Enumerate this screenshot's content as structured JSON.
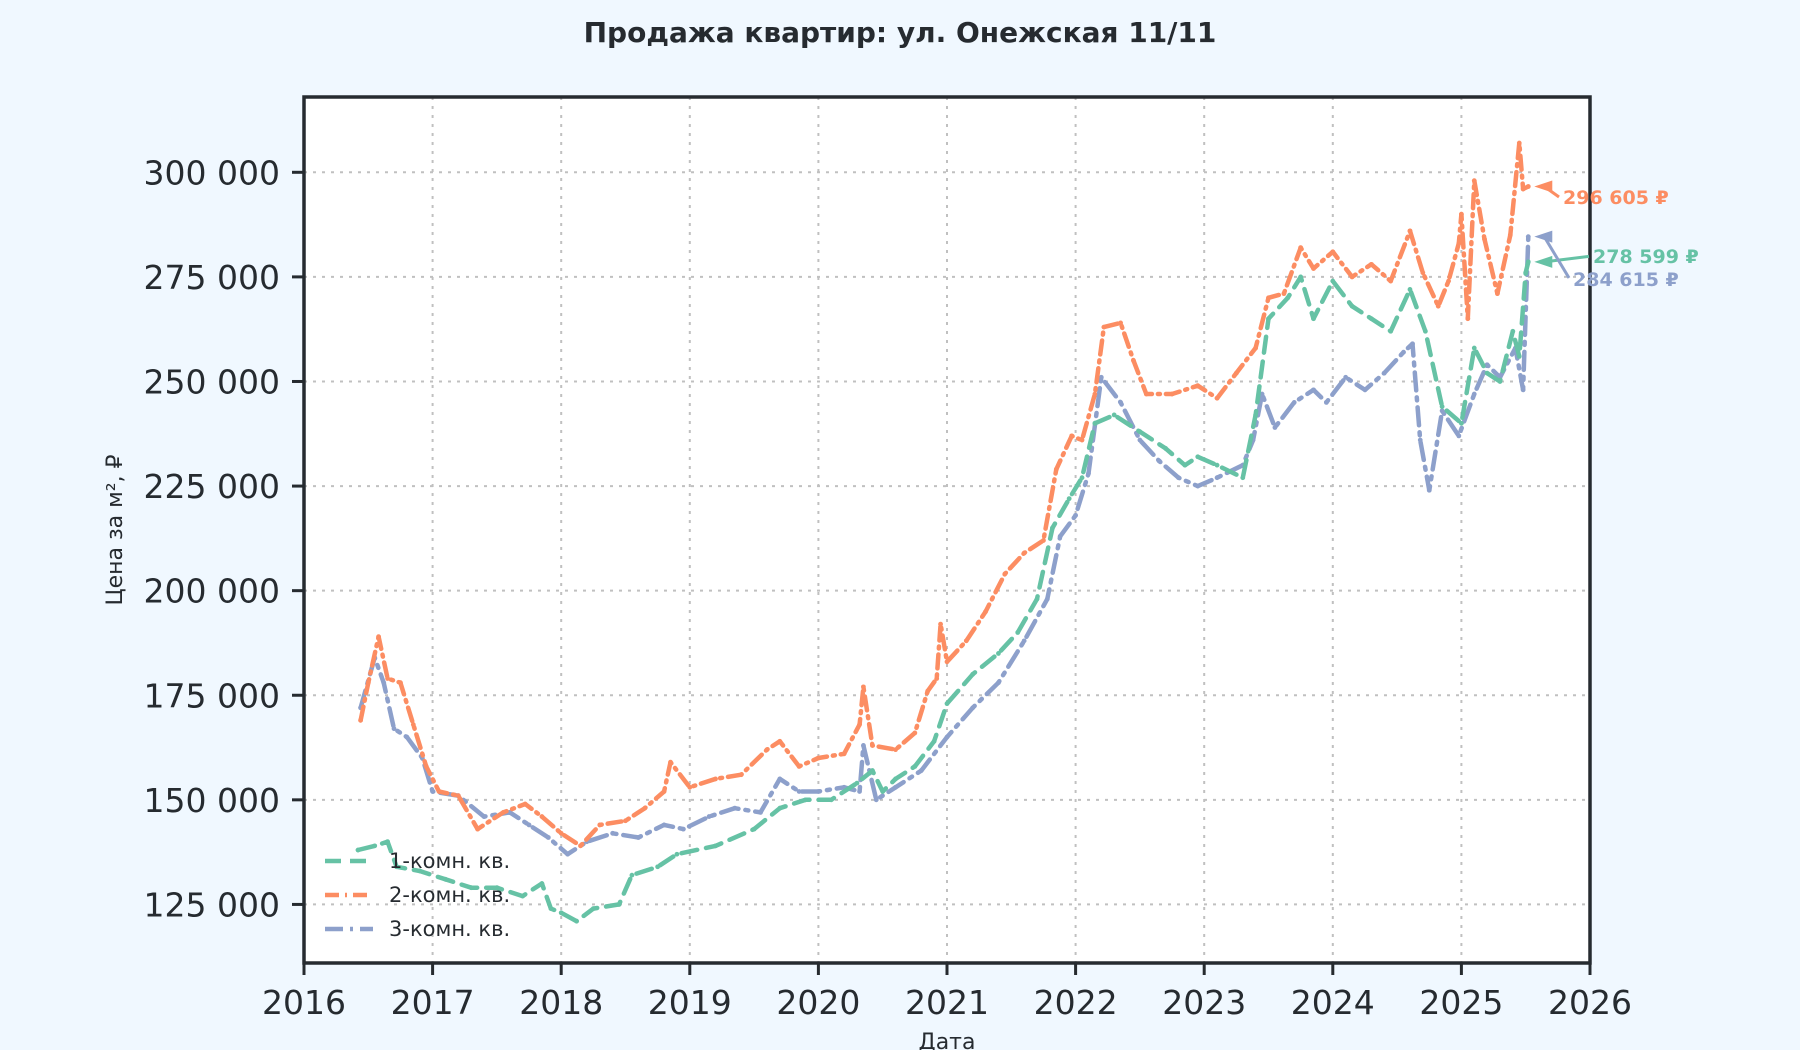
{
  "chart_data": {
    "type": "line",
    "title": "Продажа квартир: ул. Онежская 11/11",
    "xlabel": "Дата",
    "ylabel": "Цена за м², ₽",
    "xlim": [
      2016,
      2026
    ],
    "ylim": [
      111000,
      318000
    ],
    "xticks": [
      {
        "value": 2016,
        "label": "2016"
      },
      {
        "value": 2017,
        "label": "2017"
      },
      {
        "value": 2018,
        "label": "2018"
      },
      {
        "value": 2019,
        "label": "2019"
      },
      {
        "value": 2020,
        "label": "2020"
      },
      {
        "value": 2021,
        "label": "2021"
      },
      {
        "value": 2022,
        "label": "2022"
      },
      {
        "value": 2023,
        "label": "2023"
      },
      {
        "value": 2024,
        "label": "2024"
      },
      {
        "value": 2025,
        "label": "2025"
      },
      {
        "value": 2026,
        "label": "2026"
      }
    ],
    "yticks": [
      {
        "value": 125000,
        "label": "125 000"
      },
      {
        "value": 150000,
        "label": "150 000"
      },
      {
        "value": 175000,
        "label": "175 000"
      },
      {
        "value": 200000,
        "label": "200 000"
      },
      {
        "value": 225000,
        "label": "225 000"
      },
      {
        "value": 250000,
        "label": "250 000"
      },
      {
        "value": 275000,
        "label": "275 000"
      },
      {
        "value": 300000,
        "label": "300 000"
      }
    ],
    "grid": true,
    "legend_position": "bottom-left",
    "series": [
      {
        "name": "1-комн. кв.",
        "color": "#66c2a5",
        "dash": "dashed",
        "end_label": "278 599 ₽",
        "points": [
          [
            2016.42,
            138000
          ],
          [
            2016.55,
            139000
          ],
          [
            2016.65,
            140000
          ],
          [
            2016.72,
            134000
          ],
          [
            2016.9,
            133000
          ],
          [
            2017.1,
            131000
          ],
          [
            2017.3,
            129000
          ],
          [
            2017.5,
            129000
          ],
          [
            2017.7,
            127000
          ],
          [
            2017.85,
            130000
          ],
          [
            2017.92,
            124000
          ],
          [
            2018.0,
            123000
          ],
          [
            2018.12,
            121000
          ],
          [
            2018.25,
            124000
          ],
          [
            2018.45,
            125000
          ],
          [
            2018.55,
            132000
          ],
          [
            2018.75,
            134000
          ],
          [
            2018.9,
            137000
          ],
          [
            2019.2,
            139000
          ],
          [
            2019.5,
            143000
          ],
          [
            2019.7,
            148000
          ],
          [
            2019.9,
            150000
          ],
          [
            2020.1,
            150000
          ],
          [
            2020.3,
            154000
          ],
          [
            2020.42,
            157000
          ],
          [
            2020.5,
            152000
          ],
          [
            2020.6,
            155000
          ],
          [
            2020.75,
            158000
          ],
          [
            2020.9,
            164000
          ],
          [
            2021.0,
            173000
          ],
          [
            2021.2,
            180000
          ],
          [
            2021.4,
            185000
          ],
          [
            2021.55,
            190000
          ],
          [
            2021.7,
            198000
          ],
          [
            2021.82,
            215000
          ],
          [
            2021.95,
            222000
          ],
          [
            2022.05,
            227000
          ],
          [
            2022.15,
            240000
          ],
          [
            2022.3,
            242000
          ],
          [
            2022.5,
            238000
          ],
          [
            2022.7,
            234000
          ],
          [
            2022.85,
            230000
          ],
          [
            2022.95,
            232000
          ],
          [
            2023.1,
            230000
          ],
          [
            2023.3,
            227000
          ],
          [
            2023.4,
            242000
          ],
          [
            2023.5,
            265000
          ],
          [
            2023.65,
            270000
          ],
          [
            2023.75,
            275000
          ],
          [
            2023.85,
            265000
          ],
          [
            2024.0,
            274000
          ],
          [
            2024.15,
            268000
          ],
          [
            2024.3,
            265000
          ],
          [
            2024.45,
            262000
          ],
          [
            2024.6,
            272000
          ],
          [
            2024.72,
            262000
          ],
          [
            2024.85,
            244000
          ],
          [
            2025.0,
            240000
          ],
          [
            2025.1,
            258000
          ],
          [
            2025.2,
            252000
          ],
          [
            2025.3,
            250000
          ],
          [
            2025.4,
            262000
          ],
          [
            2025.45,
            256000
          ],
          [
            2025.5,
            276000
          ],
          [
            2025.52,
            278599
          ]
        ]
      },
      {
        "name": "2-комн. кв.",
        "color": "#fc8d62",
        "dash": "dashed-dots",
        "end_label": "296 605 ₽",
        "points": [
          [
            2016.44,
            169000
          ],
          [
            2016.5,
            178000
          ],
          [
            2016.58,
            189000
          ],
          [
            2016.65,
            179000
          ],
          [
            2016.75,
            178000
          ],
          [
            2016.85,
            168000
          ],
          [
            2016.95,
            158000
          ],
          [
            2017.05,
            152000
          ],
          [
            2017.2,
            151000
          ],
          [
            2017.35,
            143000
          ],
          [
            2017.55,
            147000
          ],
          [
            2017.72,
            149000
          ],
          [
            2017.85,
            146000
          ],
          [
            2018.0,
            142000
          ],
          [
            2018.15,
            139000
          ],
          [
            2018.3,
            144000
          ],
          [
            2018.5,
            145000
          ],
          [
            2018.65,
            148000
          ],
          [
            2018.8,
            152000
          ],
          [
            2018.85,
            159000
          ],
          [
            2019.0,
            153000
          ],
          [
            2019.2,
            155000
          ],
          [
            2019.4,
            156000
          ],
          [
            2019.6,
            162000
          ],
          [
            2019.7,
            164000
          ],
          [
            2019.85,
            158000
          ],
          [
            2020.0,
            160000
          ],
          [
            2020.2,
            161000
          ],
          [
            2020.32,
            168000
          ],
          [
            2020.35,
            177000
          ],
          [
            2020.42,
            163000
          ],
          [
            2020.6,
            162000
          ],
          [
            2020.75,
            166000
          ],
          [
            2020.85,
            176000
          ],
          [
            2020.92,
            179000
          ],
          [
            2020.95,
            192000
          ],
          [
            2021.0,
            183000
          ],
          [
            2021.15,
            188000
          ],
          [
            2021.3,
            195000
          ],
          [
            2021.45,
            204000
          ],
          [
            2021.6,
            209000
          ],
          [
            2021.75,
            212000
          ],
          [
            2021.85,
            229000
          ],
          [
            2021.97,
            237000
          ],
          [
            2022.05,
            236000
          ],
          [
            2022.15,
            247000
          ],
          [
            2022.22,
            263000
          ],
          [
            2022.35,
            264000
          ],
          [
            2022.45,
            255000
          ],
          [
            2022.55,
            247000
          ],
          [
            2022.75,
            247000
          ],
          [
            2022.95,
            249000
          ],
          [
            2023.1,
            246000
          ],
          [
            2023.25,
            252000
          ],
          [
            2023.4,
            258000
          ],
          [
            2023.5,
            270000
          ],
          [
            2023.62,
            271000
          ],
          [
            2023.75,
            282000
          ],
          [
            2023.85,
            277000
          ],
          [
            2024.0,
            281000
          ],
          [
            2024.15,
            275000
          ],
          [
            2024.3,
            278000
          ],
          [
            2024.45,
            274000
          ],
          [
            2024.6,
            286000
          ],
          [
            2024.7,
            276000
          ],
          [
            2024.82,
            268000
          ],
          [
            2024.9,
            274000
          ],
          [
            2024.98,
            283000
          ],
          [
            2025.0,
            290000
          ],
          [
            2025.05,
            265000
          ],
          [
            2025.1,
            298000
          ],
          [
            2025.18,
            284000
          ],
          [
            2025.28,
            271000
          ],
          [
            2025.38,
            285000
          ],
          [
            2025.45,
            307000
          ],
          [
            2025.48,
            296000
          ],
          [
            2025.52,
            296605
          ]
        ]
      },
      {
        "name": "3-комн. кв.",
        "color": "#8da0cb",
        "dash": "dash-dot",
        "end_label": "284 615 ₽",
        "points": [
          [
            2016.44,
            172000
          ],
          [
            2016.55,
            184000
          ],
          [
            2016.62,
            178000
          ],
          [
            2016.7,
            167000
          ],
          [
            2016.8,
            165000
          ],
          [
            2016.92,
            160000
          ],
          [
            2017.0,
            152000
          ],
          [
            2017.2,
            151000
          ],
          [
            2017.4,
            146000
          ],
          [
            2017.6,
            147000
          ],
          [
            2017.75,
            144000
          ],
          [
            2017.9,
            141000
          ],
          [
            2018.05,
            137000
          ],
          [
            2018.2,
            140000
          ],
          [
            2018.4,
            142000
          ],
          [
            2018.6,
            141000
          ],
          [
            2018.8,
            144000
          ],
          [
            2018.95,
            143000
          ],
          [
            2019.15,
            146000
          ],
          [
            2019.35,
            148000
          ],
          [
            2019.55,
            147000
          ],
          [
            2019.7,
            155000
          ],
          [
            2019.85,
            152000
          ],
          [
            2020.0,
            152000
          ],
          [
            2020.2,
            153000
          ],
          [
            2020.32,
            152000
          ],
          [
            2020.35,
            163000
          ],
          [
            2020.45,
            150000
          ],
          [
            2020.6,
            153000
          ],
          [
            2020.8,
            157000
          ],
          [
            2021.0,
            165000
          ],
          [
            2021.2,
            172000
          ],
          [
            2021.4,
            178000
          ],
          [
            2021.6,
            188000
          ],
          [
            2021.78,
            198000
          ],
          [
            2021.88,
            213000
          ],
          [
            2022.0,
            218000
          ],
          [
            2022.1,
            228000
          ],
          [
            2022.2,
            251000
          ],
          [
            2022.35,
            245000
          ],
          [
            2022.5,
            236000
          ],
          [
            2022.65,
            231000
          ],
          [
            2022.8,
            227000
          ],
          [
            2022.95,
            225000
          ],
          [
            2023.1,
            227000
          ],
          [
            2023.3,
            230000
          ],
          [
            2023.38,
            236000
          ],
          [
            2023.45,
            247000
          ],
          [
            2023.55,
            239000
          ],
          [
            2023.7,
            245000
          ],
          [
            2023.85,
            248000
          ],
          [
            2023.95,
            245000
          ],
          [
            2024.1,
            251000
          ],
          [
            2024.25,
            248000
          ],
          [
            2024.4,
            252000
          ],
          [
            2024.55,
            257000
          ],
          [
            2024.62,
            259000
          ],
          [
            2024.68,
            236000
          ],
          [
            2024.75,
            224000
          ],
          [
            2024.85,
            243000
          ],
          [
            2024.98,
            237000
          ],
          [
            2025.1,
            247000
          ],
          [
            2025.2,
            254000
          ],
          [
            2025.3,
            251000
          ],
          [
            2025.42,
            258000
          ],
          [
            2025.48,
            248000
          ],
          [
            2025.52,
            284615
          ]
        ]
      }
    ]
  }
}
